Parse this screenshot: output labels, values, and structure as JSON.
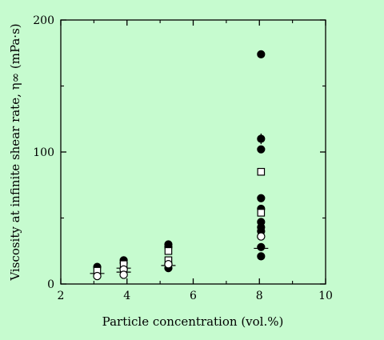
{
  "chart_data": {
    "type": "scatter",
    "xlabel": "Particle concentration (vol.%)",
    "ylabel": "Viscosity at infinite shear rate, η∞  (mPa·s)",
    "xlim": [
      2,
      10
    ],
    "ylim": [
      0,
      200
    ],
    "x_ticks": [
      "2",
      "4",
      "6",
      "8",
      "10"
    ],
    "y_ticks": [
      "0",
      "100",
      "200"
    ],
    "grid": false,
    "legend": "none",
    "series": [
      {
        "marker": "filled-circle",
        "points": [
          {
            "x": 3.1,
            "y": 13
          },
          {
            "x": 3.9,
            "y": 18
          },
          {
            "x": 3.9,
            "y": 16
          },
          {
            "x": 5.25,
            "y": 30
          },
          {
            "x": 5.25,
            "y": 28
          },
          {
            "x": 5.25,
            "y": 12
          },
          {
            "x": 8.05,
            "y": 174
          },
          {
            "x": 8.05,
            "y": 110
          },
          {
            "x": 8.05,
            "y": 102
          },
          {
            "x": 8.05,
            "y": 65
          },
          {
            "x": 8.05,
            "y": 57
          },
          {
            "x": 8.05,
            "y": 47
          },
          {
            "x": 8.05,
            "y": 43
          },
          {
            "x": 8.05,
            "y": 40
          },
          {
            "x": 8.05,
            "y": 28
          },
          {
            "x": 8.05,
            "y": 21
          }
        ]
      },
      {
        "marker": "open-square",
        "points": [
          {
            "x": 3.1,
            "y": 10
          },
          {
            "x": 3.9,
            "y": 15
          },
          {
            "x": 5.25,
            "y": 25
          },
          {
            "x": 5.25,
            "y": 18
          },
          {
            "x": 8.05,
            "y": 85
          },
          {
            "x": 8.05,
            "y": 54
          }
        ]
      },
      {
        "marker": "open-circle",
        "points": [
          {
            "x": 3.1,
            "y": 6
          },
          {
            "x": 3.9,
            "y": 11
          },
          {
            "x": 3.9,
            "y": 7
          },
          {
            "x": 5.25,
            "y": 15
          },
          {
            "x": 8.05,
            "y": 36
          }
        ]
      }
    ],
    "error_bars": [
      {
        "x": 3.1,
        "y": 8,
        "type": "horizontal"
      },
      {
        "x": 3.1,
        "y": 13,
        "type": "vertical",
        "low": 11,
        "high": 15
      },
      {
        "x": 3.9,
        "y": 18,
        "type": "vertical",
        "low": 16,
        "high": 20
      },
      {
        "x": 3.9,
        "y": 12,
        "type": "horizontal"
      },
      {
        "x": 3.9,
        "y": 9,
        "type": "horizontal"
      },
      {
        "x": 5.25,
        "y": 30,
        "type": "vertical",
        "low": 28,
        "high": 33
      },
      {
        "x": 5.25,
        "y": 14,
        "type": "horizontal"
      },
      {
        "x": 8.05,
        "y": 110,
        "type": "vertical",
        "low": 106,
        "high": 114
      },
      {
        "x": 8.05,
        "y": 57,
        "type": "vertical",
        "low": 54,
        "high": 60
      },
      {
        "x": 8.05,
        "y": 27,
        "type": "horizontal"
      }
    ]
  }
}
